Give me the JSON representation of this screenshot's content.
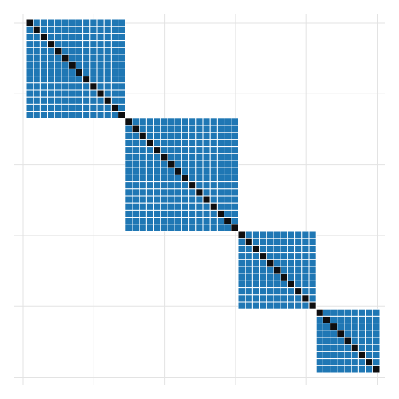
{
  "chart_data": {
    "type": "heatmap",
    "title": "",
    "xlabel": "",
    "ylabel": "",
    "n": 50,
    "grid": true,
    "grid_lines": 6,
    "blocks": [
      {
        "start": 0,
        "size": 14
      },
      {
        "start": 14,
        "size": 16
      },
      {
        "start": 30,
        "size": 11
      },
      {
        "start": 41,
        "size": 9
      }
    ],
    "cell_values": {
      "diagonal": 1,
      "within_block": 0.5,
      "outside_block": 0
    },
    "colors": {
      "diagonal": "#0e0e10",
      "block": "#1f77b4",
      "background": "#ffffff",
      "cell_border": "#ffffff",
      "grid": "#e3e3e3"
    }
  }
}
